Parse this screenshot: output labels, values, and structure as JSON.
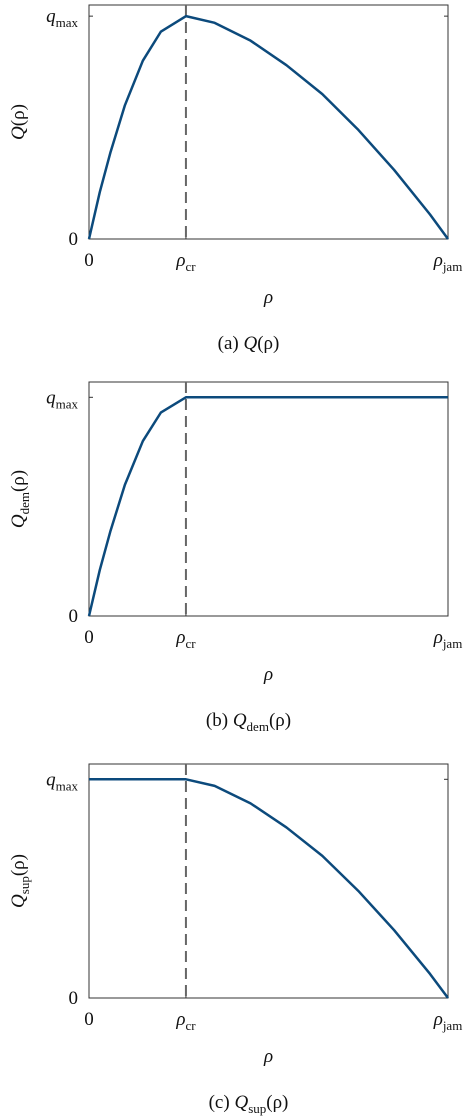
{
  "chart_data": [
    {
      "type": "line",
      "ylabel": {
        "base": "Q",
        "arg": "(ρ)"
      },
      "xlabel": "ρ",
      "caption": {
        "prefix": "(a)",
        "base": "Q",
        "arg": "(ρ)"
      },
      "xlim": [
        0,
        1
      ],
      "ylim": [
        0,
        1.05
      ],
      "xticks": [
        0,
        {
          "value": 0.27,
          "label": "ρ",
          "sub": "cr"
        },
        {
          "value": 1,
          "label": "ρ",
          "sub": "jam"
        }
      ],
      "yticks": [
        0,
        {
          "value": 1,
          "label": "q",
          "sub": "max"
        }
      ],
      "x": [
        0,
        0.03,
        0.06,
        0.1,
        0.15,
        0.2,
        0.27,
        0.35,
        0.45,
        0.55,
        0.65,
        0.75,
        0.85,
        0.95,
        1
      ],
      "series": [
        {
          "color": "#0c4a7c",
          "values": [
            0,
            0.21,
            0.39,
            0.6,
            0.8,
            0.93,
            1,
            0.97,
            0.89,
            0.78,
            0.65,
            0.49,
            0.31,
            0.11,
            0
          ]
        }
      ],
      "vlines": [
        {
          "x": 0.27,
          "color": "#666666",
          "dashed": true
        }
      ]
    },
    {
      "type": "line",
      "ylabel": {
        "base": "Q",
        "subscript": "dem",
        "arg": "(ρ)"
      },
      "xlabel": "ρ",
      "caption": {
        "prefix": "(b)",
        "base": "Q",
        "subscript": "dem",
        "arg": "(ρ)"
      },
      "xlim": [
        0,
        1
      ],
      "ylim": [
        0,
        1.07
      ],
      "xticks": [
        0,
        {
          "value": 0.27,
          "label": "ρ",
          "sub": "cr"
        },
        {
          "value": 1,
          "label": "ρ",
          "sub": "jam"
        }
      ],
      "yticks": [
        0,
        {
          "value": 1,
          "label": "q",
          "sub": "max"
        }
      ],
      "x": [
        0,
        0.03,
        0.06,
        0.1,
        0.15,
        0.2,
        0.27,
        1
      ],
      "series": [
        {
          "color": "#0c4a7c",
          "values": [
            0,
            0.21,
            0.39,
            0.6,
            0.8,
            0.93,
            1,
            1
          ]
        }
      ],
      "vlines": [
        {
          "x": 0.27,
          "color": "#666666",
          "dashed": true
        }
      ]
    },
    {
      "type": "line",
      "ylabel": {
        "base": "Q",
        "subscript": "sup",
        "arg": "(ρ)"
      },
      "xlabel": "ρ",
      "caption": {
        "prefix": "(c)",
        "base": "Q",
        "subscript": "sup",
        "arg": "(ρ)"
      },
      "xlim": [
        0,
        1
      ],
      "ylim": [
        0,
        1.07
      ],
      "xticks": [
        0,
        {
          "value": 0.27,
          "label": "ρ",
          "sub": "cr"
        },
        {
          "value": 1,
          "label": "ρ",
          "sub": "jam"
        }
      ],
      "yticks": [
        0,
        {
          "value": 1,
          "label": "q",
          "sub": "max"
        }
      ],
      "x": [
        0,
        0.27,
        0.35,
        0.45,
        0.55,
        0.65,
        0.75,
        0.85,
        0.95,
        1
      ],
      "series": [
        {
          "color": "#0c4a7c",
          "values": [
            1,
            1,
            0.97,
            0.89,
            0.78,
            0.65,
            0.49,
            0.31,
            0.11,
            0
          ]
        }
      ],
      "vlines": [
        {
          "x": 0.27,
          "color": "#666666",
          "dashed": true
        }
      ]
    }
  ]
}
